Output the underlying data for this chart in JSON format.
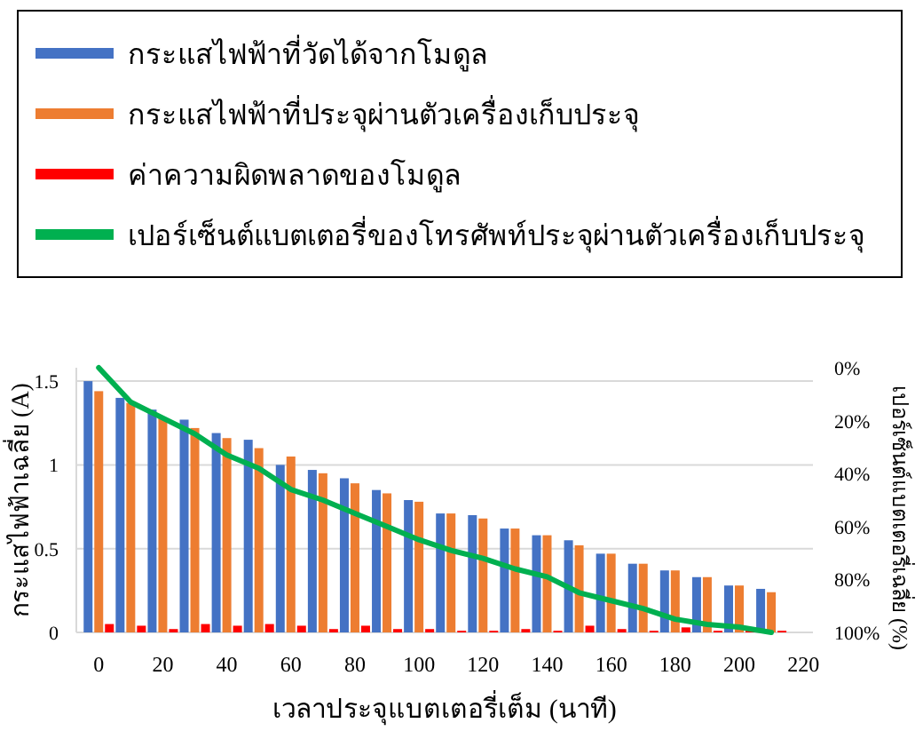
{
  "chart_data": {
    "type": "bar",
    "x": [
      0,
      10,
      20,
      30,
      40,
      50,
      60,
      70,
      80,
      90,
      100,
      110,
      120,
      130,
      140,
      150,
      160,
      170,
      180,
      190,
      200,
      210
    ],
    "xlabel": "เวลาประจุแบตเตอรี่เต็ม (นาที)",
    "ylabel": "กระแสไฟฟ้าเฉลี่ย (A)",
    "y2label": "เปอร์เซ็นต์แบตเตอรี่เฉลี่ย (%)",
    "xlim": [
      -7,
      223
    ],
    "xticks": [
      0,
      20,
      40,
      60,
      80,
      100,
      120,
      140,
      160,
      180,
      200,
      220
    ],
    "ylim": [
      0,
      1.58
    ],
    "yticks": [
      0,
      0.5,
      1,
      1.5
    ],
    "y2lim": [
      100,
      0
    ],
    "y2ticks": [
      {
        "value": 0,
        "label": "0%"
      },
      {
        "value": 20,
        "label": "20%"
      },
      {
        "value": 40,
        "label": "40%"
      },
      {
        "value": 60,
        "label": "60%"
      },
      {
        "value": 80,
        "label": "80%"
      },
      {
        "value": 100,
        "label": "100%"
      }
    ],
    "grid": "y",
    "legend": "top",
    "series": [
      {
        "name": "กระแสไฟฟ้าที่วัดได้จากโมดูล",
        "color": "#4472c4",
        "values": [
          1.5,
          1.4,
          1.33,
          1.27,
          1.19,
          1.15,
          1.0,
          0.97,
          0.92,
          0.85,
          0.79,
          0.71,
          0.7,
          0.62,
          0.58,
          0.55,
          0.47,
          0.41,
          0.37,
          0.33,
          0.28,
          0.26
        ]
      },
      {
        "name": "กระแสไฟฟ้าที่ประจุผ่านตัวเครื่องเก็บประจุ",
        "color": "#ed7d31",
        "values": [
          1.44,
          1.37,
          1.28,
          1.22,
          1.16,
          1.1,
          1.05,
          0.95,
          0.89,
          0.83,
          0.78,
          0.71,
          0.68,
          0.62,
          0.58,
          0.52,
          0.47,
          0.41,
          0.37,
          0.33,
          0.28,
          0.24
        ]
      },
      {
        "name": "ค่าความผิดพลาดของโมดูล",
        "color": "#ff0000",
        "values": [
          0.05,
          0.04,
          0.02,
          0.05,
          0.04,
          0.05,
          0.04,
          0.02,
          0.04,
          0.02,
          0.02,
          0.01,
          0.01,
          0.02,
          0.01,
          0.04,
          0.02,
          0.01,
          0.03,
          0.01,
          0.01,
          0.01
        ]
      },
      {
        "name": "เปอร์เซ็นต์แบตเตอรี่ของโทรศัพท์ประจุผ่านตัวเครื่องเก็บประจุ",
        "color": "#00b050",
        "type": "line",
        "axis": "y2",
        "values": [
          0,
          13,
          19,
          25,
          33,
          38,
          46,
          50,
          55,
          60,
          65,
          69,
          72,
          76,
          79,
          85,
          88,
          91,
          95,
          97,
          98,
          100
        ]
      }
    ]
  }
}
